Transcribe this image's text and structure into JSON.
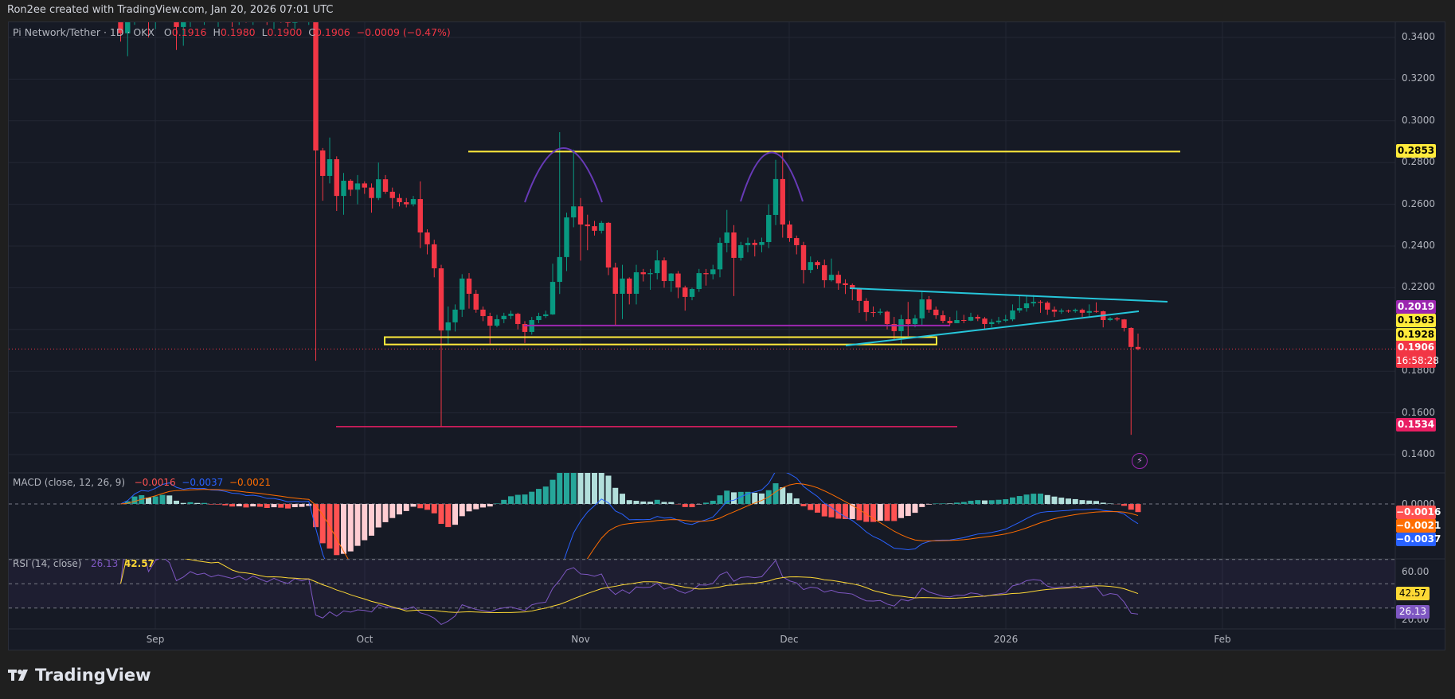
{
  "header": {
    "attribution": "Ron2ee created with TradingView.com, Jan 20, 2026 07:01 UTC"
  },
  "legend": {
    "symbol": "Pi Network/Tether · 1D · OKX",
    "o_label": "O",
    "o": "0.1916",
    "h_label": "H",
    "h": "0.1980",
    "l_label": "L",
    "l": "0.1900",
    "c_label": "C",
    "c": "0.1906",
    "change": "−0.0009 (−0.47%)"
  },
  "price_axis": {
    "ticks": [
      "0.3400",
      "0.3200",
      "0.3000",
      "0.2800",
      "0.2600",
      "0.2400",
      "0.2200",
      "0.1800",
      "0.1600",
      "0.1400"
    ]
  },
  "price_labels": [
    {
      "value": "0.2853",
      "bg": "#ffeb3b",
      "fg": "#000000"
    },
    {
      "value": "0.2019",
      "bg": "#9c27b0",
      "fg": "#ffffff"
    },
    {
      "value": "0.1963",
      "bg": "#ffeb3b",
      "fg": "#000000"
    },
    {
      "value": "0.1928",
      "bg": "#ffeb3b",
      "fg": "#000000"
    },
    {
      "value": "0.1906",
      "bg": "#f23645",
      "fg": "#ffffff"
    },
    {
      "value": "0.1534",
      "bg": "#e91e63",
      "fg": "#ffffff"
    }
  ],
  "countdown": "16:58:28",
  "macd": {
    "title": "MACD (close, 12, 26, 9)",
    "hist": "−0.0016",
    "macd": "−0.0037",
    "signal": "−0.0021",
    "zero_tick": "0.0000",
    "colors": {
      "hist": "#ff5252",
      "macd": "#2962ff",
      "signal": "#ff6d00"
    }
  },
  "rsi": {
    "title": "RSI (14, close)",
    "rsi": "26.13",
    "ma": "42.57",
    "ticks": [
      "60.00",
      "20.00"
    ],
    "colors": {
      "rsi": "#7e57c2",
      "ma": "#fdd835"
    }
  },
  "x_axis": {
    "labels": [
      "Sep",
      "Oct",
      "Nov",
      "Dec",
      "2026",
      "Feb"
    ]
  },
  "footer": {
    "logo_text": "TradingView"
  },
  "alert_icon": "lightning-icon",
  "colors": {
    "up": "#089981",
    "down": "#f23645",
    "background": "#161a25"
  },
  "chart_data": {
    "type": "candlestick",
    "interval": "1D",
    "ylim": [
      0.13,
      0.35
    ],
    "x_ticks": [
      "Sep",
      "Oct",
      "Nov",
      "Dec",
      "2026",
      "Feb"
    ],
    "candles_ohlc": [
      [
        0.356,
        0.362,
        0.338,
        0.342
      ],
      [
        0.342,
        0.356,
        0.331,
        0.35
      ],
      [
        0.35,
        0.366,
        0.346,
        0.36
      ],
      [
        0.36,
        0.368,
        0.352,
        0.356
      ],
      [
        0.356,
        0.364,
        0.34,
        0.348
      ],
      [
        0.348,
        0.36,
        0.344,
        0.357
      ],
      [
        0.357,
        0.365,
        0.35,
        0.361
      ],
      [
        0.361,
        0.37,
        0.355,
        0.358
      ],
      [
        0.358,
        0.362,
        0.334,
        0.345
      ],
      [
        0.345,
        0.352,
        0.336,
        0.349
      ],
      [
        0.349,
        0.36,
        0.345,
        0.356
      ],
      [
        0.356,
        0.362,
        0.35,
        0.353
      ],
      [
        0.353,
        0.358,
        0.346,
        0.355
      ],
      [
        0.355,
        0.36,
        0.349,
        0.351
      ],
      [
        0.351,
        0.356,
        0.345,
        0.354
      ],
      [
        0.354,
        0.36,
        0.35,
        0.352
      ],
      [
        0.352,
        0.358,
        0.345,
        0.35
      ],
      [
        0.35,
        0.356,
        0.346,
        0.353
      ],
      [
        0.353,
        0.357,
        0.347,
        0.349
      ],
      [
        0.349,
        0.356,
        0.346,
        0.354
      ],
      [
        0.354,
        0.358,
        0.349,
        0.351
      ],
      [
        0.351,
        0.355,
        0.346,
        0.348
      ],
      [
        0.348,
        0.354,
        0.344,
        0.352
      ],
      [
        0.352,
        0.356,
        0.347,
        0.349
      ],
      [
        0.349,
        0.353,
        0.345,
        0.347
      ],
      [
        0.347,
        0.354,
        0.344,
        0.352
      ],
      [
        0.352,
        0.358,
        0.348,
        0.35
      ],
      [
        0.35,
        0.356,
        0.346,
        0.352
      ],
      [
        0.352,
        0.356,
        0.185,
        0.2858
      ],
      [
        0.2858,
        0.287,
        0.2617,
        0.2736
      ],
      [
        0.2736,
        0.292,
        0.27,
        0.2816
      ],
      [
        0.2816,
        0.283,
        0.2568,
        0.264
      ],
      [
        0.264,
        0.275,
        0.255,
        0.2713
      ],
      [
        0.2713,
        0.272,
        0.264,
        0.267
      ],
      [
        0.267,
        0.274,
        0.26,
        0.27
      ],
      [
        0.27,
        0.271,
        0.265,
        0.268
      ],
      [
        0.268,
        0.27,
        0.256,
        0.263
      ],
      [
        0.263,
        0.28,
        0.262,
        0.272
      ],
      [
        0.272,
        0.274,
        0.265,
        0.266
      ],
      [
        0.266,
        0.268,
        0.258,
        0.263
      ],
      [
        0.263,
        0.265,
        0.259,
        0.261
      ],
      [
        0.261,
        0.263,
        0.2585,
        0.26
      ],
      [
        0.26,
        0.264,
        0.259,
        0.2625
      ],
      [
        0.2625,
        0.271,
        0.239,
        0.2465
      ],
      [
        0.2465,
        0.248,
        0.236,
        0.2408
      ],
      [
        0.2408,
        0.243,
        0.225,
        0.2293
      ],
      [
        0.2293,
        0.231,
        0.1534,
        0.1995
      ],
      [
        0.1995,
        0.211,
        0.1925,
        0.2034
      ],
      [
        0.2034,
        0.212,
        0.199,
        0.2095
      ],
      [
        0.2095,
        0.2265,
        0.206,
        0.2244
      ],
      [
        0.2244,
        0.227,
        0.21,
        0.2171
      ],
      [
        0.2171,
        0.219,
        0.208,
        0.2095
      ],
      [
        0.2095,
        0.211,
        0.204,
        0.2064
      ],
      [
        0.2064,
        0.208,
        0.193,
        0.2018
      ],
      [
        0.2018,
        0.207,
        0.201,
        0.2049
      ],
      [
        0.2049,
        0.208,
        0.203,
        0.2065
      ],
      [
        0.2065,
        0.209,
        0.205,
        0.2075
      ],
      [
        0.2075,
        0.208,
        0.2,
        0.2026
      ],
      [
        0.2026,
        0.204,
        0.1935,
        0.1988
      ],
      [
        0.1988,
        0.206,
        0.1975,
        0.2045
      ],
      [
        0.2045,
        0.208,
        0.203,
        0.2064
      ],
      [
        0.2064,
        0.209,
        0.2055,
        0.2072
      ],
      [
        0.2072,
        0.2315,
        0.207,
        0.2228
      ],
      [
        0.2228,
        0.2946,
        0.217,
        0.2347
      ],
      [
        0.2347,
        0.256,
        0.228,
        0.2537
      ],
      [
        0.2537,
        0.2862,
        0.249,
        0.259
      ],
      [
        0.259,
        0.263,
        0.233,
        0.2503
      ],
      [
        0.2503,
        0.255,
        0.238,
        0.2495
      ],
      [
        0.2495,
        0.252,
        0.245,
        0.2473
      ],
      [
        0.2473,
        0.252,
        0.246,
        0.2511
      ],
      [
        0.2511,
        0.2515,
        0.226,
        0.2297
      ],
      [
        0.2297,
        0.232,
        0.2022,
        0.2171
      ],
      [
        0.2171,
        0.231,
        0.205,
        0.2244
      ],
      [
        0.2244,
        0.225,
        0.212,
        0.2171
      ],
      [
        0.2171,
        0.231,
        0.212,
        0.2274
      ],
      [
        0.2274,
        0.229,
        0.223,
        0.2265
      ],
      [
        0.2265,
        0.229,
        0.219,
        0.227
      ],
      [
        0.227,
        0.238,
        0.224,
        0.2331
      ],
      [
        0.2331,
        0.2345,
        0.22,
        0.2232
      ],
      [
        0.2232,
        0.227,
        0.218,
        0.2268
      ],
      [
        0.2268,
        0.228,
        0.215,
        0.2201
      ],
      [
        0.2201,
        0.221,
        0.209,
        0.2156
      ],
      [
        0.2156,
        0.22,
        0.214,
        0.2194
      ],
      [
        0.2194,
        0.229,
        0.218,
        0.227
      ],
      [
        0.227,
        0.229,
        0.221,
        0.2265
      ],
      [
        0.2265,
        0.231,
        0.224,
        0.2288
      ],
      [
        0.2288,
        0.244,
        0.225,
        0.2415
      ],
      [
        0.2415,
        0.2573,
        0.237,
        0.2465
      ],
      [
        0.2465,
        0.25,
        0.216,
        0.2343
      ],
      [
        0.2343,
        0.242,
        0.233,
        0.2404
      ],
      [
        0.2404,
        0.244,
        0.237,
        0.2415
      ],
      [
        0.2415,
        0.243,
        0.235,
        0.2405
      ],
      [
        0.2405,
        0.244,
        0.237,
        0.2419
      ],
      [
        0.2419,
        0.26,
        0.239,
        0.2549
      ],
      [
        0.2549,
        0.2813,
        0.25,
        0.2721
      ],
      [
        0.2721,
        0.2853,
        0.244,
        0.2503
      ],
      [
        0.2503,
        0.252,
        0.242,
        0.2438
      ],
      [
        0.2438,
        0.245,
        0.236,
        0.2404
      ],
      [
        0.2404,
        0.242,
        0.222,
        0.2285
      ],
      [
        0.2285,
        0.235,
        0.227,
        0.2323
      ],
      [
        0.2323,
        0.233,
        0.229,
        0.2308
      ],
      [
        0.2308,
        0.2335,
        0.22,
        0.2236
      ],
      [
        0.2236,
        0.234,
        0.223,
        0.2262
      ],
      [
        0.2262,
        0.228,
        0.219,
        0.2221
      ],
      [
        0.2221,
        0.224,
        0.217,
        0.2213
      ],
      [
        0.2213,
        0.222,
        0.214,
        0.2198
      ],
      [
        0.2198,
        0.22,
        0.208,
        0.2137
      ],
      [
        0.2137,
        0.215,
        0.204,
        0.2083
      ],
      [
        0.2083,
        0.211,
        0.206,
        0.208
      ],
      [
        0.208,
        0.21,
        0.207,
        0.2085
      ],
      [
        0.2085,
        0.209,
        0.2,
        0.2026
      ],
      [
        0.2026,
        0.206,
        0.195,
        0.1992
      ],
      [
        0.1992,
        0.207,
        0.1925,
        0.2049
      ],
      [
        0.2049,
        0.2132,
        0.1968,
        0.2026
      ],
      [
        0.2026,
        0.207,
        0.201,
        0.2053
      ],
      [
        0.2053,
        0.2185,
        0.202,
        0.2144
      ],
      [
        0.2144,
        0.216,
        0.208,
        0.2095
      ],
      [
        0.2095,
        0.211,
        0.205,
        0.2068
      ],
      [
        0.2068,
        0.209,
        0.203,
        0.2041
      ],
      [
        0.2041,
        0.206,
        0.202,
        0.203
      ],
      [
        0.203,
        0.209,
        0.203,
        0.2045
      ],
      [
        0.2045,
        0.207,
        0.203,
        0.2042
      ],
      [
        0.2042,
        0.208,
        0.204,
        0.206
      ],
      [
        0.206,
        0.207,
        0.204,
        0.2052
      ],
      [
        0.2052,
        0.206,
        0.2,
        0.2026
      ],
      [
        0.2026,
        0.205,
        0.201,
        0.2035
      ],
      [
        0.2035,
        0.206,
        0.2025,
        0.2042
      ],
      [
        0.2042,
        0.207,
        0.2035,
        0.2048
      ],
      [
        0.2048,
        0.212,
        0.204,
        0.2091
      ],
      [
        0.2091,
        0.216,
        0.208,
        0.2102
      ],
      [
        0.2102,
        0.2165,
        0.2085,
        0.2125
      ],
      [
        0.2125,
        0.2165,
        0.211,
        0.2132
      ],
      [
        0.2132,
        0.214,
        0.208,
        0.2128
      ],
      [
        0.2128,
        0.2135,
        0.207,
        0.2095
      ],
      [
        0.2095,
        0.211,
        0.206,
        0.2085
      ],
      [
        0.2085,
        0.21,
        0.2075,
        0.209
      ],
      [
        0.209,
        0.2095,
        0.208,
        0.2088
      ],
      [
        0.2088,
        0.21,
        0.208,
        0.2094
      ],
      [
        0.2094,
        0.21,
        0.206,
        0.208
      ],
      [
        0.208,
        0.212,
        0.206,
        0.2088
      ],
      [
        0.2088,
        0.213,
        0.208,
        0.2087
      ],
      [
        0.2087,
        0.209,
        0.201,
        0.2045
      ],
      [
        0.2045,
        0.206,
        0.204,
        0.2053
      ],
      [
        0.2053,
        0.206,
        0.204,
        0.2048
      ],
      [
        0.2048,
        0.205,
        0.199,
        0.2007
      ],
      [
        0.2007,
        0.201,
        0.1495,
        0.1916
      ],
      [
        0.1916,
        0.198,
        0.19,
        0.1906
      ]
    ],
    "drawings": {
      "resistance_level": 0.2853,
      "neckline_level": 0.2019,
      "support_zone": [
        0.1928,
        0.1963
      ],
      "wick_low_level": 0.1534,
      "current_price": 0.1906,
      "pattern": "double top"
    }
  }
}
